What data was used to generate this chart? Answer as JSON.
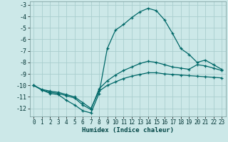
{
  "xlabel": "Humidex (Indice chaleur)",
  "background_color": "#cce8e8",
  "grid_color": "#aacece",
  "line_color": "#006868",
  "xlim": [
    -0.5,
    23.5
  ],
  "ylim": [
    -12.7,
    -2.7
  ],
  "yticks": [
    -3,
    -4,
    -5,
    -6,
    -7,
    -8,
    -9,
    -10,
    -11,
    -12
  ],
  "xticks": [
    0,
    1,
    2,
    3,
    4,
    5,
    6,
    7,
    8,
    9,
    10,
    11,
    12,
    13,
    14,
    15,
    16,
    17,
    18,
    19,
    20,
    21,
    22,
    23
  ],
  "curve1_x": [
    0,
    1,
    2,
    3,
    4,
    5,
    6,
    7,
    8,
    9,
    10,
    11,
    12,
    13,
    14,
    15,
    16,
    17,
    18,
    19,
    20,
    21,
    22,
    23
  ],
  "curve1_y": [
    -10.0,
    -10.4,
    -10.7,
    -10.8,
    -11.3,
    -11.7,
    -12.2,
    -12.4,
    -10.7,
    -6.8,
    -5.2,
    -4.7,
    -4.1,
    -3.6,
    -3.3,
    -3.5,
    -4.3,
    -5.5,
    -6.8,
    -7.3,
    -8.0,
    -7.8,
    -8.2,
    -8.6
  ],
  "curve2_x": [
    0,
    1,
    2,
    3,
    4,
    5,
    6,
    7,
    8,
    9,
    10,
    11,
    12,
    13,
    14,
    15,
    16,
    17,
    18,
    19,
    20,
    21,
    22,
    23
  ],
  "curve2_y": [
    -10.0,
    -10.4,
    -10.6,
    -10.7,
    -10.9,
    -11.1,
    -11.7,
    -12.1,
    -10.3,
    -9.6,
    -9.1,
    -8.7,
    -8.4,
    -8.1,
    -7.9,
    -8.0,
    -8.2,
    -8.4,
    -8.5,
    -8.6,
    -8.2,
    -8.3,
    -8.5,
    -8.7
  ],
  "curve3_x": [
    0,
    1,
    2,
    3,
    4,
    5,
    6,
    7,
    8,
    9,
    10,
    11,
    12,
    13,
    14,
    15,
    16,
    17,
    18,
    19,
    20,
    21,
    22,
    23
  ],
  "curve3_y": [
    -10.0,
    -10.35,
    -10.5,
    -10.6,
    -10.8,
    -11.0,
    -11.5,
    -12.0,
    -10.5,
    -10.0,
    -9.7,
    -9.4,
    -9.2,
    -9.05,
    -8.9,
    -8.9,
    -9.0,
    -9.05,
    -9.1,
    -9.15,
    -9.2,
    -9.25,
    -9.3,
    -9.35
  ]
}
